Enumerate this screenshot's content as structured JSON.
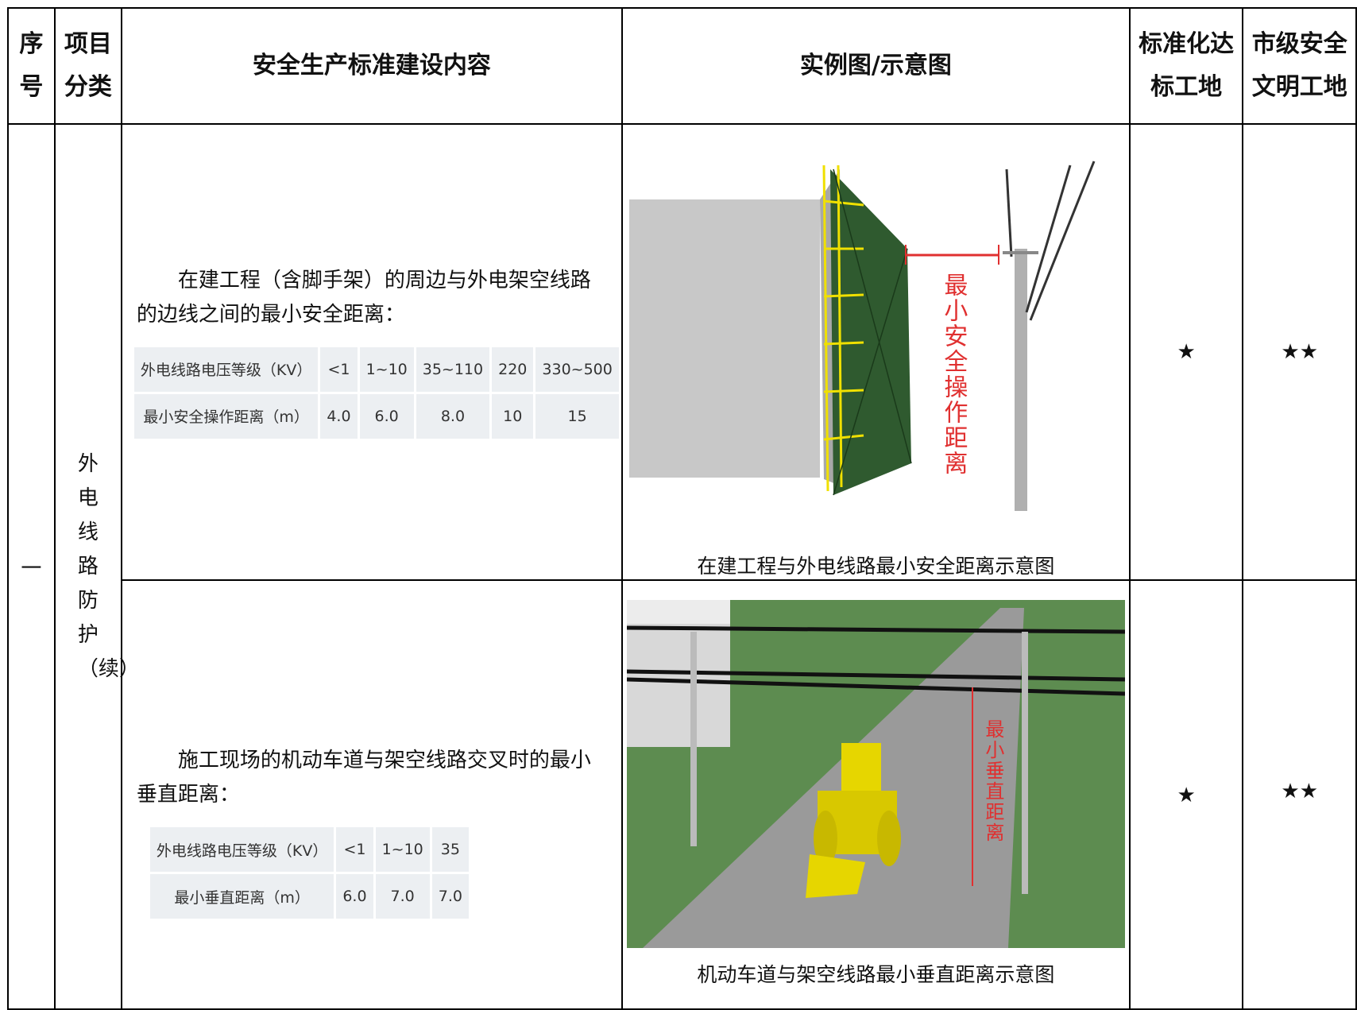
{
  "header": [
    "序号",
    "项目分类",
    "安全生产标准建设内容",
    "实例图/示意图",
    "标准化达标工地",
    "市级安全文明工地"
  ],
  "section": {
    "number": "一",
    "category": "外电线路防护（续）"
  },
  "rows": [
    {
      "text": "在建工程（含脚手架）的周边与外电架空线路的边线之间的最小安全距离：",
      "table": [
        [
          "外电线路电压等级（KV）",
          "<1",
          "1~10",
          "35~110",
          "220",
          "330~500"
        ],
        [
          "最小安全操作距离（m）",
          "4.0",
          "6.0",
          "8.0",
          "10",
          "15"
        ]
      ],
      "figure": {
        "label": "最小安全操作距离",
        "caption": "在建工程与外电线路最小安全距离示意图"
      },
      "standard": "★",
      "city": "★★"
    },
    {
      "text": "施工现场的机动车道与架空线路交叉时的最小垂直距离：",
      "table": [
        [
          "外电线路电压等级（KV）",
          "<1",
          "1~10",
          "35"
        ],
        [
          "最小垂直距离（m）",
          "6.0",
          "7.0",
          "7.0"
        ]
      ],
      "figure": {
        "label": "最小垂直距离",
        "caption": "机动车道与架空线路最小垂直距离示意图"
      },
      "standard": "★",
      "city": "★★"
    }
  ]
}
